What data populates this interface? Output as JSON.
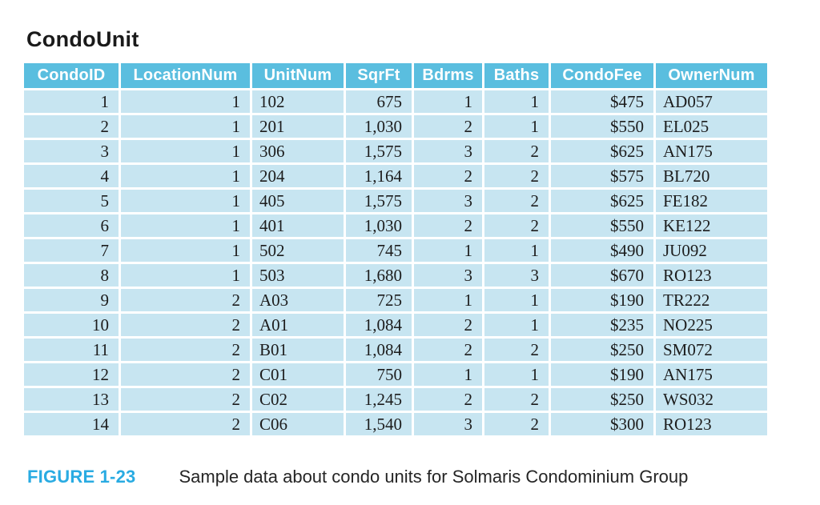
{
  "page": {
    "title": "CondoUnit",
    "caption": {
      "label": "FIGURE 1-23",
      "text": "Sample data about condo units for Solmaris Condominium Group"
    }
  },
  "colors": {
    "header_bg": "#5abedf",
    "cell_bg": "#c7e5f1",
    "header_text": "#ffffff",
    "figure_label": "#29abe2"
  },
  "chart_data": {
    "type": "table",
    "title": "CondoUnit",
    "columns": [
      "CondoID",
      "LocationNum",
      "UnitNum",
      "SqrFt",
      "Bdrms",
      "Baths",
      "CondoFee",
      "OwnerNum"
    ],
    "align": [
      "right",
      "right",
      "left",
      "right",
      "right",
      "right",
      "right",
      "left"
    ],
    "rows": [
      [
        "1",
        "1",
        "102",
        "675",
        "1",
        "1",
        "$475",
        "AD057"
      ],
      [
        "2",
        "1",
        "201",
        "1,030",
        "2",
        "1",
        "$550",
        "EL025"
      ],
      [
        "3",
        "1",
        "306",
        "1,575",
        "3",
        "2",
        "$625",
        "AN175"
      ],
      [
        "4",
        "1",
        "204",
        "1,164",
        "2",
        "2",
        "$575",
        "BL720"
      ],
      [
        "5",
        "1",
        "405",
        "1,575",
        "3",
        "2",
        "$625",
        "FE182"
      ],
      [
        "6",
        "1",
        "401",
        "1,030",
        "2",
        "2",
        "$550",
        "KE122"
      ],
      [
        "7",
        "1",
        "502",
        "745",
        "1",
        "1",
        "$490",
        "JU092"
      ],
      [
        "8",
        "1",
        "503",
        "1,680",
        "3",
        "3",
        "$670",
        "RO123"
      ],
      [
        "9",
        "2",
        "A03",
        "725",
        "1",
        "1",
        "$190",
        "TR222"
      ],
      [
        "10",
        "2",
        "A01",
        "1,084",
        "2",
        "1",
        "$235",
        "NO225"
      ],
      [
        "11",
        "2",
        "B01",
        "1,084",
        "2",
        "2",
        "$250",
        "SM072"
      ],
      [
        "12",
        "2",
        "C01",
        "750",
        "1",
        "1",
        "$190",
        "AN175"
      ],
      [
        "13",
        "2",
        "C02",
        "1,245",
        "2",
        "2",
        "$250",
        "WS032"
      ],
      [
        "14",
        "2",
        "C06",
        "1,540",
        "3",
        "2",
        "$300",
        "RO123"
      ]
    ]
  }
}
